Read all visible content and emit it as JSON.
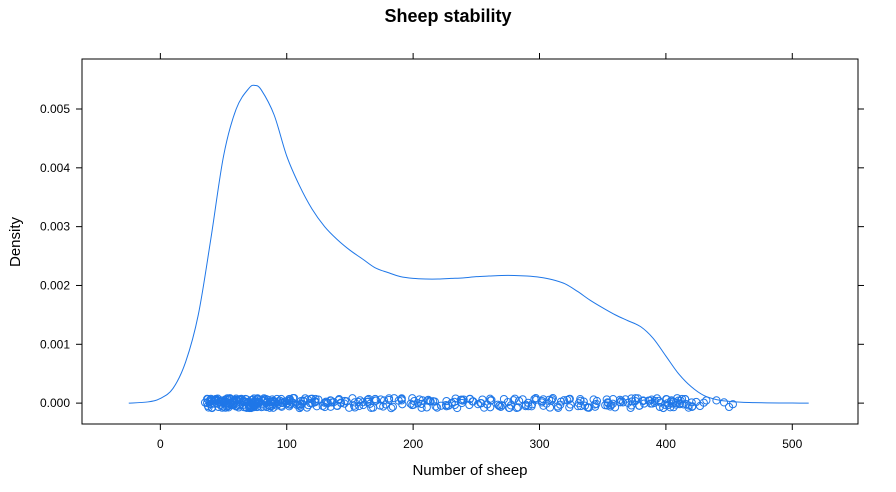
{
  "chart_data": {
    "type": "line",
    "title": "Sheep stability",
    "xlabel": "Number of sheep",
    "ylabel": "Density",
    "xlim": [
      -62,
      552
    ],
    "ylim": [
      -0.000355,
      0.00585
    ],
    "x_ticks": [
      0,
      100,
      200,
      300,
      400,
      500
    ],
    "x_tick_labels": [
      "0",
      "100",
      "200",
      "300",
      "400",
      "500"
    ],
    "y_ticks": [
      0,
      0.001,
      0.002,
      0.003,
      0.004,
      0.005
    ],
    "y_tick_labels": [
      "0.000",
      "0.001",
      "0.002",
      "0.003",
      "0.004",
      "0.005"
    ],
    "grid": false,
    "colors": {
      "series": "#1f77e8",
      "axis": "#000000"
    },
    "series": [
      {
        "kind": "density-curve",
        "x": [
          -25,
          -10,
          0,
          10,
          20,
          30,
          40,
          50,
          60,
          70,
          75,
          80,
          90,
          100,
          110,
          120,
          130,
          140,
          150,
          160,
          170,
          180,
          190,
          200,
          210,
          220,
          230,
          240,
          250,
          260,
          270,
          280,
          290,
          300,
          310,
          320,
          330,
          340,
          350,
          360,
          370,
          380,
          390,
          400,
          410,
          420,
          430,
          440,
          450,
          460,
          470,
          480,
          490,
          500,
          513
        ],
        "y": [
          0.0,
          2e-05,
          8e-05,
          0.00025,
          0.0007,
          0.0015,
          0.0028,
          0.0042,
          0.005,
          0.00535,
          0.0054,
          0.00532,
          0.0049,
          0.0042,
          0.0037,
          0.0033,
          0.003,
          0.00278,
          0.0026,
          0.00245,
          0.0023,
          0.00222,
          0.00215,
          0.00212,
          0.00211,
          0.00211,
          0.00212,
          0.00213,
          0.00215,
          0.00216,
          0.00217,
          0.00217,
          0.00216,
          0.00214,
          0.0021,
          0.00203,
          0.0019,
          0.00175,
          0.00162,
          0.0015,
          0.0014,
          0.0013,
          0.0011,
          0.0008,
          0.0005,
          0.00028,
          0.00013,
          6e-05,
          3e-05,
          1.5e-05,
          8e-06,
          4e-06,
          2e-06,
          1e-06,
          0.0
        ]
      },
      {
        "kind": "rug-points",
        "x": [
          37,
          39,
          41,
          43,
          45,
          46,
          48,
          50,
          51,
          53,
          55,
          56,
          58,
          60,
          61,
          63,
          65,
          66,
          68,
          70,
          71,
          72,
          74,
          75,
          77,
          78,
          80,
          82,
          84,
          86,
          88,
          90,
          93,
          96,
          99,
          102,
          105,
          108,
          112,
          116,
          120,
          125,
          130,
          135,
          140,
          146,
          152,
          158,
          164,
          170,
          177,
          184,
          191,
          198,
          205,
          212,
          219,
          226,
          233,
          240,
          247,
          254,
          261,
          268,
          275,
          282,
          289,
          296,
          303,
          310,
          317,
          324,
          331,
          338,
          345,
          352,
          358,
          364,
          370,
          376,
          382,
          388,
          393,
          398,
          402,
          406,
          410,
          414,
          418,
          421,
          424,
          427,
          430,
          432,
          440,
          446,
          450,
          453
        ],
        "y": [
          0,
          0,
          0,
          0,
          0,
          0,
          0,
          0,
          0,
          0,
          0,
          0,
          0,
          0,
          0,
          0,
          0,
          0,
          0,
          0,
          0,
          0,
          0,
          0,
          0,
          0,
          0,
          0,
          0,
          0,
          0,
          0,
          0,
          0,
          0,
          0,
          0,
          0,
          0,
          0,
          0,
          0,
          0,
          0,
          0,
          0,
          0,
          0,
          0,
          0,
          0,
          0,
          0,
          0,
          0,
          0,
          0,
          0,
          0,
          0,
          0,
          0,
          0,
          0,
          0,
          0,
          0,
          0,
          0,
          0,
          0,
          0,
          0,
          0,
          0,
          0,
          0,
          0,
          0,
          0,
          0,
          0,
          0,
          0,
          0,
          0,
          0,
          0,
          0,
          0,
          0,
          0,
          0,
          0,
          0,
          0,
          0,
          0
        ]
      }
    ]
  }
}
